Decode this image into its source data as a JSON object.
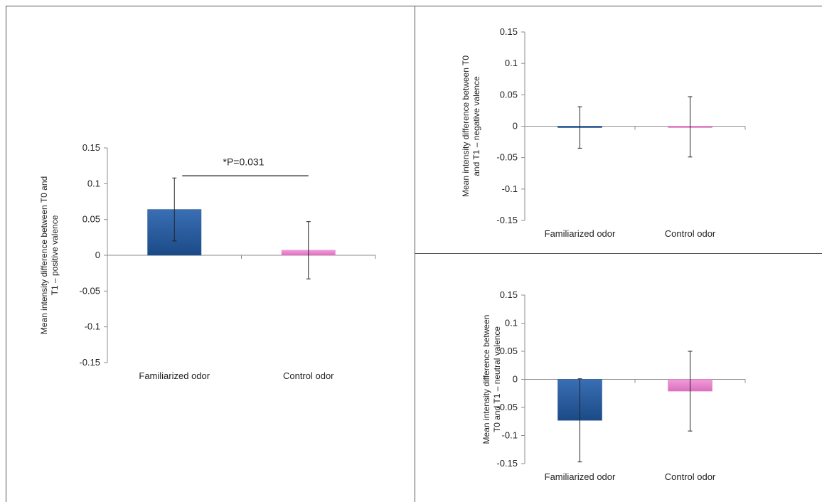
{
  "chart_data": [
    {
      "type": "bar",
      "panel": "positive",
      "categories": [
        "Familiarized odor",
        "Control odor"
      ],
      "values": [
        0.064,
        0.007
      ],
      "error": [
        0.044,
        0.04
      ],
      "colors": [
        "#1f4e8c",
        "#e377c2"
      ],
      "ylabel_lines": [
        "Mean intensity difference between T0 and",
        "T1 – positive valence"
      ],
      "ylim": [
        -0.15,
        0.15
      ],
      "yticks": [
        "0.15",
        "0.1",
        "0.05",
        "0",
        "-0.05",
        "-0.1",
        "-0.15"
      ],
      "annotation": "*P=0.031"
    },
    {
      "type": "bar",
      "panel": "negative",
      "categories": [
        "Familiarized odor",
        "Control odor"
      ],
      "values": [
        -0.002,
        -0.001
      ],
      "error": [
        0.033,
        0.048
      ],
      "colors": [
        "#1f4e8c",
        "#e377c2"
      ],
      "ylabel_lines": [
        "Mean intensity difference between T0",
        "and T1 – negative valence"
      ],
      "ylim": [
        -0.15,
        0.15
      ],
      "yticks": [
        "0.15",
        "0.1",
        "0.05",
        "0",
        "-0.05",
        "-0.1",
        "-0.15"
      ]
    },
    {
      "type": "bar",
      "panel": "neutral",
      "categories": [
        "Familiarized odor",
        "Control odor"
      ],
      "values": [
        -0.073,
        -0.021
      ],
      "error": [
        0.074,
        0.071
      ],
      "colors": [
        "#1f4e8c",
        "#e377c2"
      ],
      "ylabel_lines": [
        "Mean intensity difference between",
        "T0 and T1 – neutral valence"
      ],
      "ylim": [
        -0.15,
        0.15
      ],
      "yticks": [
        "0.15",
        "0.1",
        "0.05",
        "0",
        "-0.05",
        "-0.1",
        "-0.15"
      ]
    }
  ]
}
